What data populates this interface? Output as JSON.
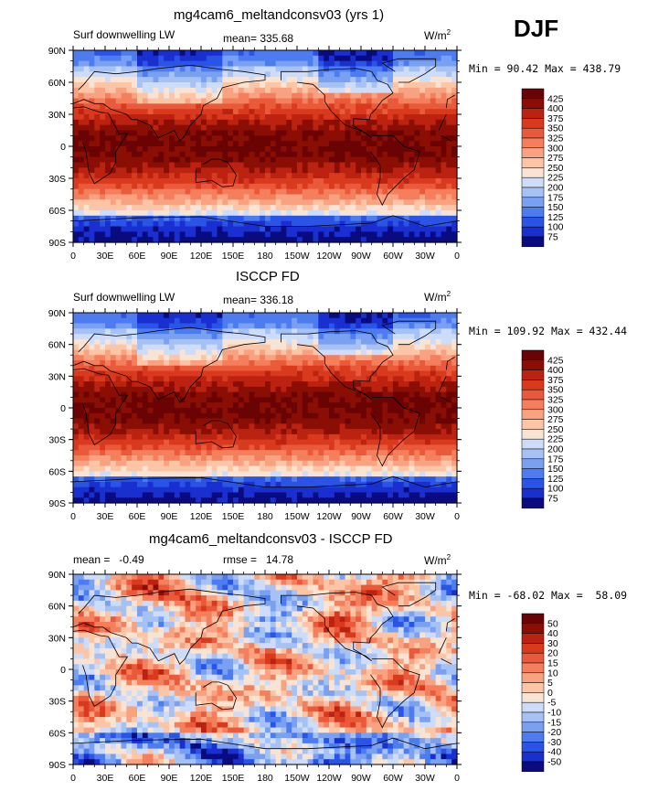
{
  "season": "DJF",
  "panels": [
    {
      "id": "model",
      "title": "mg4cam6_meltandconsv03 (yrs 1)",
      "left_label": "Surf downwelling LW",
      "center_label": "mean= 335.68",
      "units_label": "W/m",
      "units_exp": "2",
      "minmax": "Min =  90.42 Max = 438.79",
      "colorbar": [
        "425",
        "400",
        "375",
        "350",
        "325",
        "300",
        "275",
        "250",
        "225",
        "200",
        "175",
        "150",
        "125",
        "100",
        "75"
      ]
    },
    {
      "id": "obs",
      "title": "ISCCP FD",
      "left_label": "Surf downwelling LW",
      "center_label": "mean= 336.18",
      "units_label": "W/m",
      "units_exp": "2",
      "minmax": "Min = 109.92 Max = 432.44",
      "colorbar": [
        "425",
        "400",
        "375",
        "350",
        "325",
        "300",
        "275",
        "250",
        "225",
        "200",
        "175",
        "150",
        "125",
        "100",
        "75"
      ]
    },
    {
      "id": "diff",
      "title": "mg4cam6_meltandconsv03 - ISCCP FD",
      "left_label": "mean =   -0.49",
      "center_label": "rmse =   14.78",
      "units_label": "W/m",
      "units_exp": "2",
      "minmax": "Min = -68.02 Max =  58.09",
      "colorbar": [
        "50",
        "40",
        "30",
        "20",
        "15",
        "10",
        "5",
        "0",
        "-5",
        "-10",
        "-15",
        "-20",
        "-30",
        "-40",
        "-50"
      ]
    }
  ],
  "lat_ticks": [
    "90N",
    "60N",
    "30N",
    "0",
    "30S",
    "60S",
    "90S"
  ],
  "lon_ticks": [
    "0",
    "30E",
    "60E",
    "90E",
    "120E",
    "150E",
    "180",
    "150W",
    "120W",
    "90W",
    "60W",
    "30W",
    "0"
  ],
  "colors": {
    "seq": [
      "#0b0b80",
      "#1a2fd0",
      "#2a54e6",
      "#4d7cf0",
      "#7aa0f2",
      "#a6c2f5",
      "#cddcf8",
      "#f9e4d4",
      "#fcc5a6",
      "#f8a281",
      "#f47f5d",
      "#ea5a3a",
      "#d93a1e",
      "#bb2210",
      "#8a0e04",
      "#6a0303"
    ],
    "land": "#000000"
  }
}
